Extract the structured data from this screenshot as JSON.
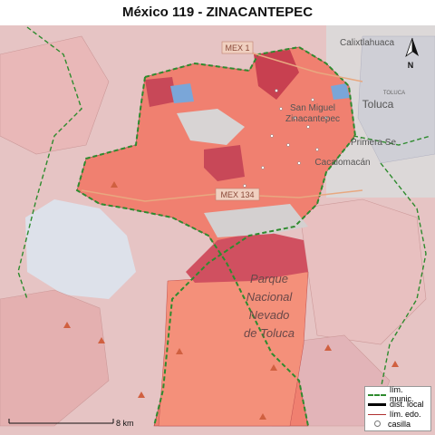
{
  "title": "México 119 - ZINACANTEPEC",
  "labels": {
    "parque": [
      "Parque",
      "Nacional",
      "Nevado",
      "de Toluca"
    ],
    "san_miguel": "San Miguel",
    "zinacantepec": "Zinacantepec",
    "calixtlahuaca": "Calixtlahuaca",
    "toluca": "Toluca",
    "primera_sec": "Primera Se",
    "cacalomacan": "Cacalomacán",
    "road_mex134": "MEX 134",
    "road_mex1": "MEX 1",
    "toluca_small": "TOLUCA"
  },
  "north_arrow": "N",
  "scale": "8 km",
  "legend": [
    {
      "label": "lím. munic.",
      "symbol": "dashed-green-line"
    },
    {
      "label": "dist. local",
      "symbol": "thick-black-line"
    },
    {
      "label": "lím. edo.",
      "symbol": "thin-red-line"
    },
    {
      "label": "casilla",
      "symbol": "small-circle"
    }
  ],
  "colors": {
    "district_fill": "#f08070",
    "dark_section": "#c84050",
    "background": "#e8c8c8",
    "municipal_boundary": "#2e8b2e"
  }
}
